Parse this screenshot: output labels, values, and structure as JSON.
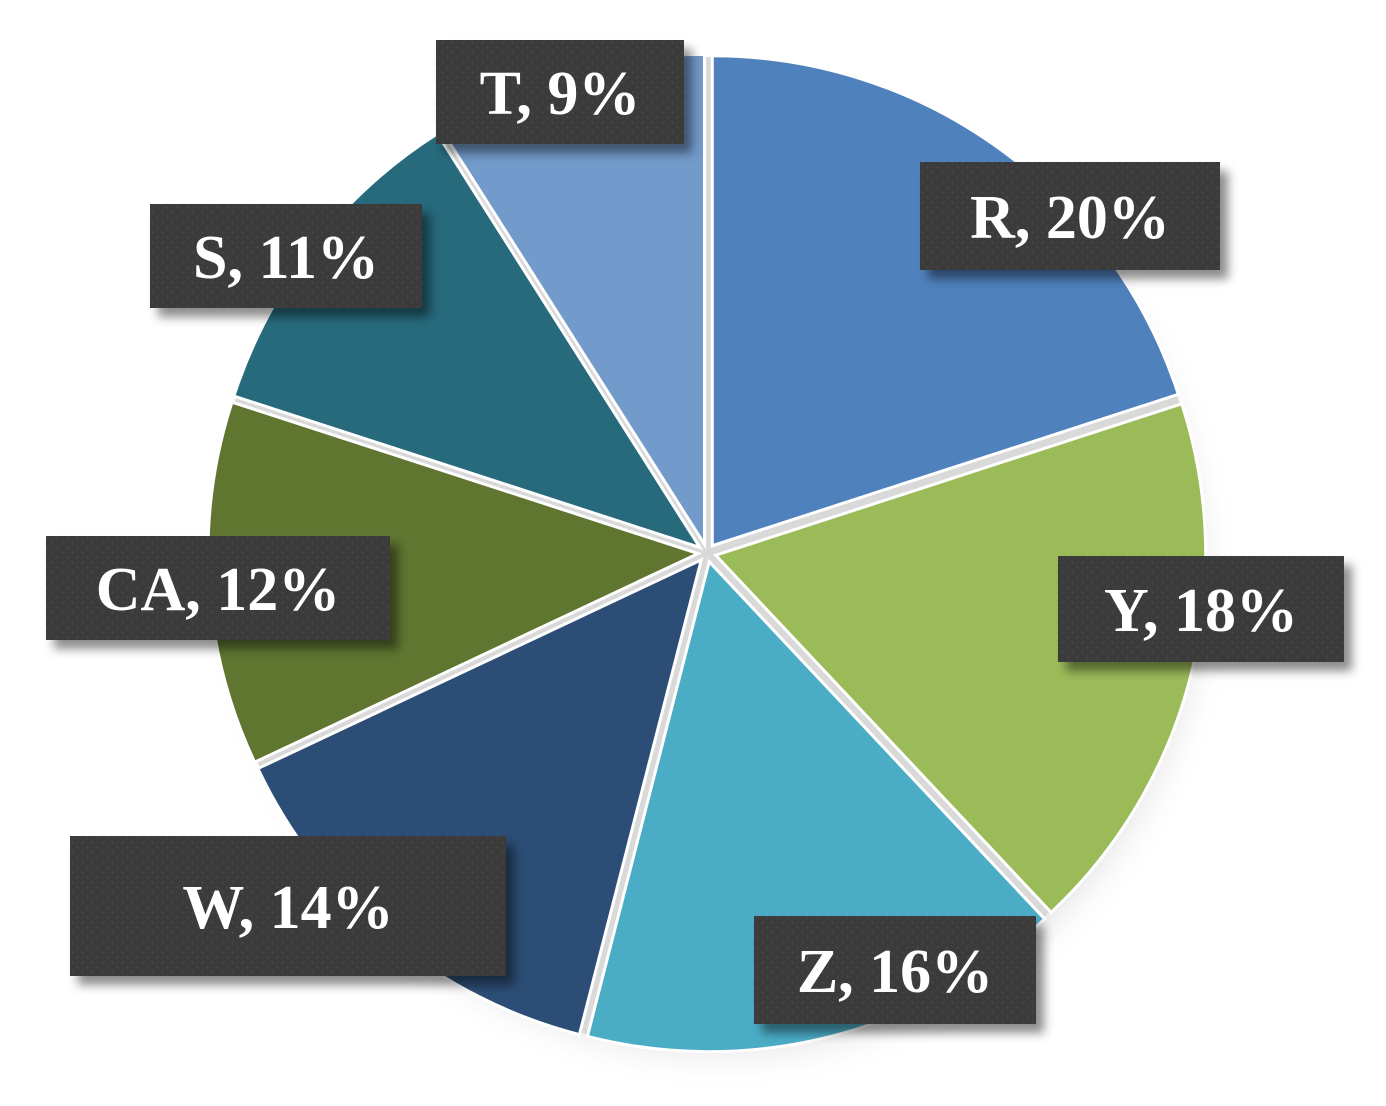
{
  "chart_data": {
    "type": "pie",
    "title": "",
    "categories": [
      "R",
      "Y",
      "Z",
      "W",
      "CA",
      "S",
      "T"
    ],
    "values": [
      20,
      18,
      16,
      14,
      12,
      11,
      9
    ],
    "labels": [
      "R, 20%",
      "Y, 18%",
      "Z, 16%",
      "W, 14%",
      "CA, 12%",
      "S, 11%",
      "T, 9%"
    ],
    "start_angle_deg": 0,
    "direction": "clockwise",
    "colors": [
      "#4f81bd",
      "#9bbb59",
      "#4bacc6",
      "#2c4d75",
      "#5f7530",
      "#276a7c",
      "#729aca"
    ],
    "label_background": "#3a3a3a",
    "label_color": "#ffffff",
    "legend": "none",
    "data_labels": "category-and-percent"
  }
}
